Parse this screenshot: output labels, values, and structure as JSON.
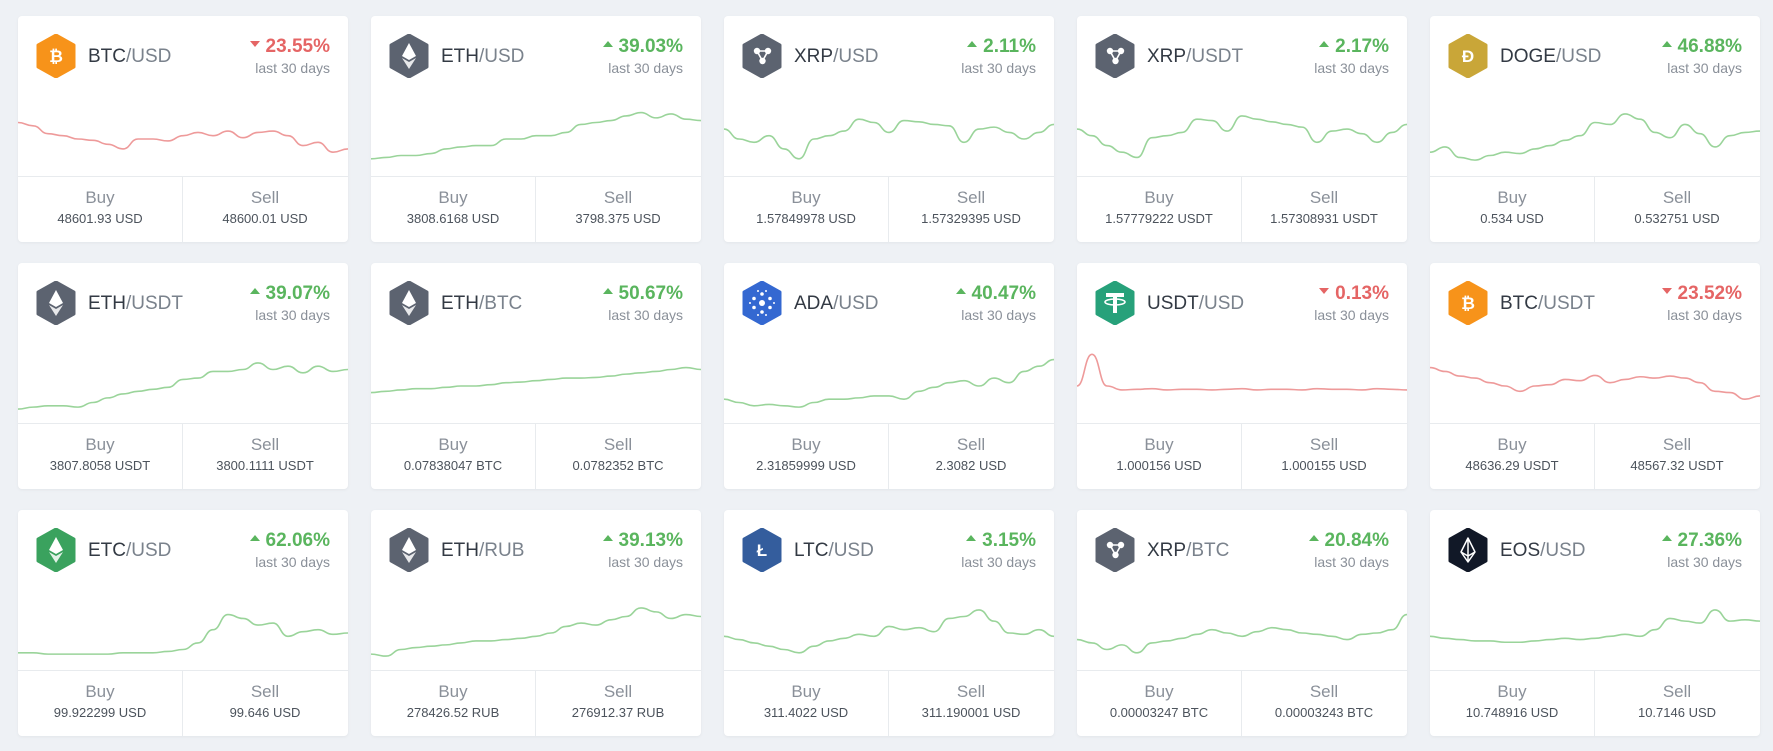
{
  "colors": {
    "up": "#5ab55e",
    "down": "#e56565",
    "line_up": "#9ad49a",
    "line_down": "#ee9a9a"
  },
  "labels": {
    "buy": "Buy",
    "sell": "Sell"
  },
  "pairs": [
    {
      "base": "BTC",
      "quote": "/USD",
      "change": "23.55%",
      "dir": "down",
      "period": "last 30 days",
      "buy": "48601.93 USD",
      "sell": "48600.01 USD",
      "icon": "bitcoin-icon",
      "icon_color": "#f7931a",
      "trend": [
        0.75,
        0.7,
        0.58,
        0.55,
        0.5,
        0.48,
        0.42,
        0.35,
        0.5,
        0.5,
        0.47,
        0.55,
        0.6,
        0.55,
        0.62,
        0.52,
        0.6,
        0.62,
        0.55,
        0.4,
        0.45,
        0.3,
        0.35
      ]
    },
    {
      "base": "ETH",
      "quote": "/USD",
      "change": "39.03%",
      "dir": "up",
      "period": "last 30 days",
      "buy": "3808.6168 USD",
      "sell": "3798.375 USD",
      "icon": "ethereum-icon",
      "icon_color": "#5c6370",
      "trend": [
        0.2,
        0.22,
        0.25,
        0.25,
        0.28,
        0.35,
        0.38,
        0.4,
        0.4,
        0.5,
        0.5,
        0.55,
        0.55,
        0.6,
        0.72,
        0.75,
        0.78,
        0.85,
        0.9,
        0.82,
        0.88,
        0.8,
        0.78
      ]
    },
    {
      "base": "XRP",
      "quote": "/USD",
      "change": "2.11%",
      "dir": "up",
      "period": "last 30 days",
      "buy": "1.57849978 USD",
      "sell": "1.57329395 USD",
      "icon": "ripple-icon",
      "icon_color": "#5c6370",
      "trend": [
        0.65,
        0.5,
        0.45,
        0.55,
        0.35,
        0.2,
        0.5,
        0.55,
        0.62,
        0.8,
        0.75,
        0.6,
        0.78,
        0.76,
        0.72,
        0.7,
        0.45,
        0.65,
        0.68,
        0.6,
        0.5,
        0.6,
        0.72
      ]
    },
    {
      "base": "XRP",
      "quote": "/USDT",
      "change": "2.17%",
      "dir": "up",
      "period": "last 30 days",
      "buy": "1.57779222 USDT",
      "sell": "1.57308931 USDT",
      "icon": "ripple-icon",
      "icon_color": "#5c6370",
      "trend": [
        0.65,
        0.55,
        0.4,
        0.3,
        0.22,
        0.52,
        0.55,
        0.6,
        0.8,
        0.78,
        0.62,
        0.85,
        0.8,
        0.76,
        0.72,
        0.68,
        0.45,
        0.62,
        0.65,
        0.58,
        0.45,
        0.6,
        0.72
      ]
    },
    {
      "base": "DOGE",
      "quote": "/USD",
      "change": "46.88%",
      "dir": "up",
      "period": "last 30 days",
      "buy": "0.534 USD",
      "sell": "0.532751 USD",
      "icon": "dogecoin-icon",
      "icon_color": "#c9a638",
      "trend": [
        0.3,
        0.38,
        0.22,
        0.18,
        0.25,
        0.3,
        0.28,
        0.35,
        0.4,
        0.48,
        0.55,
        0.75,
        0.72,
        0.88,
        0.8,
        0.6,
        0.52,
        0.72,
        0.58,
        0.38,
        0.55,
        0.6,
        0.62
      ]
    },
    {
      "base": "ETH",
      "quote": "/USDT",
      "change": "39.07%",
      "dir": "up",
      "period": "last 30 days",
      "buy": "3807.8058 USDT",
      "sell": "3800.1111 USDT",
      "icon": "ethereum-icon",
      "icon_color": "#5c6370",
      "trend": [
        0.15,
        0.18,
        0.2,
        0.2,
        0.18,
        0.25,
        0.32,
        0.38,
        0.42,
        0.45,
        0.48,
        0.6,
        0.62,
        0.72,
        0.72,
        0.75,
        0.85,
        0.75,
        0.8,
        0.7,
        0.8,
        0.72,
        0.75
      ]
    },
    {
      "base": "ETH",
      "quote": "/BTC",
      "change": "50.67%",
      "dir": "up",
      "period": "last 30 days",
      "buy": "0.07838047 BTC",
      "sell": "0.0782352 BTC",
      "icon": "ethereum-icon",
      "icon_color": "#5c6370",
      "trend": [
        0.4,
        0.42,
        0.44,
        0.46,
        0.46,
        0.48,
        0.5,
        0.5,
        0.52,
        0.55,
        0.56,
        0.58,
        0.6,
        0.62,
        0.62,
        0.63,
        0.65,
        0.68,
        0.7,
        0.72,
        0.75,
        0.78,
        0.75
      ]
    },
    {
      "base": "ADA",
      "quote": "/USD",
      "change": "40.47%",
      "dir": "up",
      "period": "last 30 days",
      "buy": "2.31859999 USD",
      "sell": "2.3082 USD",
      "icon": "cardano-icon",
      "icon_color": "#3468d1",
      "trend": [
        0.3,
        0.25,
        0.2,
        0.22,
        0.2,
        0.18,
        0.25,
        0.3,
        0.3,
        0.32,
        0.35,
        0.35,
        0.3,
        0.42,
        0.48,
        0.55,
        0.58,
        0.5,
        0.62,
        0.55,
        0.72,
        0.8,
        0.9
      ]
    },
    {
      "base": "USDT",
      "quote": "/USD",
      "change": "0.13%",
      "dir": "down",
      "period": "last 30 days",
      "buy": "1.000156 USD",
      "sell": "1.000155 USD",
      "icon": "tether-icon",
      "icon_color": "#27a17a",
      "trend": [
        0.5,
        0.98,
        0.5,
        0.44,
        0.45,
        0.46,
        0.44,
        0.45,
        0.45,
        0.44,
        0.45,
        0.46,
        0.44,
        0.45,
        0.45,
        0.44,
        0.46,
        0.45,
        0.45,
        0.44,
        0.46,
        0.45,
        0.44
      ]
    },
    {
      "base": "BTC",
      "quote": "/USDT",
      "change": "23.52%",
      "dir": "down",
      "period": "last 30 days",
      "buy": "48636.29 USDT",
      "sell": "48567.32 USDT",
      "icon": "bitcoin-icon",
      "icon_color": "#f7931a",
      "trend": [
        0.78,
        0.72,
        0.65,
        0.62,
        0.55,
        0.5,
        0.42,
        0.5,
        0.52,
        0.6,
        0.58,
        0.66,
        0.55,
        0.6,
        0.64,
        0.62,
        0.65,
        0.62,
        0.55,
        0.42,
        0.4,
        0.3,
        0.35
      ]
    },
    {
      "base": "ETC",
      "quote": "/USD",
      "change": "62.06%",
      "dir": "up",
      "period": "last 30 days",
      "buy": "99.922299 USD",
      "sell": "99.646 USD",
      "icon": "ethereum-classic-icon",
      "icon_color": "#3aa25e",
      "trend": [
        0.2,
        0.2,
        0.18,
        0.18,
        0.18,
        0.18,
        0.18,
        0.2,
        0.2,
        0.2,
        0.22,
        0.25,
        0.35,
        0.55,
        0.78,
        0.72,
        0.62,
        0.65,
        0.45,
        0.52,
        0.55,
        0.48,
        0.5
      ]
    },
    {
      "base": "ETH",
      "quote": "/RUB",
      "change": "39.13%",
      "dir": "up",
      "period": "last 30 days",
      "buy": "278426.52 RUB",
      "sell": "276912.37 RUB",
      "icon": "ethereum-icon",
      "icon_color": "#5c6370",
      "trend": [
        0.18,
        0.15,
        0.25,
        0.28,
        0.3,
        0.32,
        0.35,
        0.38,
        0.38,
        0.4,
        0.42,
        0.45,
        0.5,
        0.6,
        0.65,
        0.62,
        0.7,
        0.75,
        0.88,
        0.82,
        0.72,
        0.78,
        0.75
      ]
    },
    {
      "base": "LTC",
      "quote": "/USD",
      "change": "3.15%",
      "dir": "up",
      "period": "last 30 days",
      "buy": "311.4022 USD",
      "sell": "311.190001 USD",
      "icon": "litecoin-icon",
      "icon_color": "#345d9d",
      "trend": [
        0.45,
        0.4,
        0.35,
        0.3,
        0.25,
        0.2,
        0.3,
        0.38,
        0.42,
        0.48,
        0.45,
        0.6,
        0.55,
        0.58,
        0.52,
        0.72,
        0.75,
        0.85,
        0.68,
        0.5,
        0.48,
        0.55,
        0.45
      ]
    },
    {
      "base": "XRP",
      "quote": "/BTC",
      "change": "20.84%",
      "dir": "up",
      "period": "last 30 days",
      "buy": "0.00003247 BTC",
      "sell": "0.00003243 BTC",
      "icon": "ripple-icon",
      "icon_color": "#5c6370",
      "trend": [
        0.4,
        0.35,
        0.25,
        0.32,
        0.2,
        0.35,
        0.38,
        0.42,
        0.48,
        0.55,
        0.5,
        0.45,
        0.52,
        0.58,
        0.55,
        0.5,
        0.48,
        0.45,
        0.4,
        0.48,
        0.5,
        0.55,
        0.78
      ]
    },
    {
      "base": "EOS",
      "quote": "/USD",
      "change": "27.36%",
      "dir": "up",
      "period": "last 30 days",
      "buy": "10.748916 USD",
      "sell": "10.7146 USD",
      "icon": "eos-icon",
      "icon_color": "#111827",
      "trend": [
        0.45,
        0.42,
        0.4,
        0.38,
        0.38,
        0.36,
        0.36,
        0.38,
        0.4,
        0.42,
        0.4,
        0.42,
        0.45,
        0.48,
        0.45,
        0.55,
        0.72,
        0.68,
        0.65,
        0.85,
        0.68,
        0.7,
        0.68
      ]
    }
  ]
}
